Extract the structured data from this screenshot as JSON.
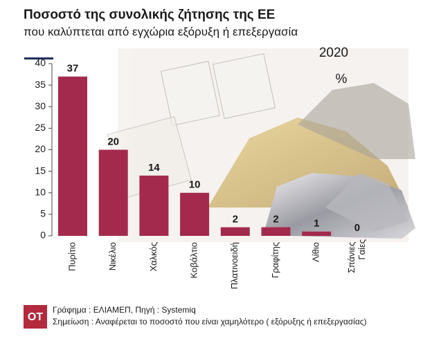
{
  "chart_data": {
    "type": "bar",
    "title": "Ποσοστό της συνολικής ζήτησης της ΕΕ",
    "subtitle": "που καλύπτεται από εγχώρια εξόρυξη ή επεξεργασία",
    "year": "2020",
    "unit": "%",
    "categories": [
      "Πυρίτιο",
      "Νικέλιο",
      "Χαλκός",
      "Κοβάλτιο",
      "Πλατινοειδή",
      "Γραφίτης",
      "Λίθιο",
      "Σπάνιες Γαίες"
    ],
    "values": [
      37,
      20,
      14,
      10,
      2,
      2,
      1,
      0
    ],
    "color": "#a32a4c",
    "ylim": [
      0,
      40
    ],
    "yticks": [
      0,
      5,
      10,
      15,
      20,
      25,
      30,
      35,
      40
    ],
    "footer": {
      "logo": "OT",
      "source": "Γράφημα : ΕΛΙΑΜΕΠ, Πηγή : Systemiq",
      "note": "Σημείωση : Αναφέρεται το  ποσοστό που είναι χαμηλότερο ( εξόρυξης ή επεξεργασίας)"
    }
  }
}
